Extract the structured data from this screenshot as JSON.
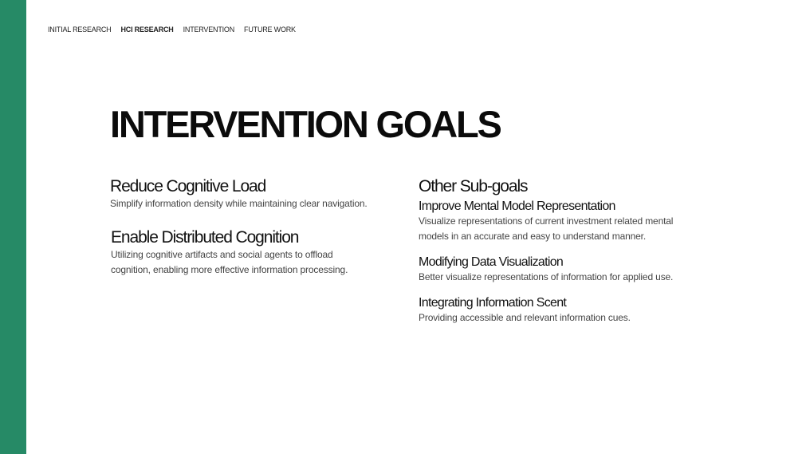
{
  "colors": {
    "accent_bar": "#268a66",
    "title": "#0b0b0b",
    "body_text": "#444444"
  },
  "nav": {
    "items": [
      {
        "label": "INITIAL RESEARCH",
        "active": false
      },
      {
        "label": "HCI RESEARCH",
        "active": true
      },
      {
        "label": "INTERVENTION",
        "active": false
      },
      {
        "label": "FUTURE WORK",
        "active": false
      }
    ]
  },
  "title": "INTERVENTION GOALS",
  "left": {
    "goal1": {
      "heading": "Reduce Cognitive Load",
      "text": "Simplify information density while maintaining clear navigation."
    },
    "goal2": {
      "heading": "Enable Distributed Cognition",
      "text_line1": "Utilizing cognitive artifacts and social agents to offload",
      "text_line2": "cognition, enabling more effective information processing."
    }
  },
  "right": {
    "heading": "Other Sub-goals",
    "items": [
      {
        "heading": "Improve Mental Model Representation",
        "text_line1": "Visualize representations of current investment related mental",
        "text_line2": "models in an accurate and easy to understand manner."
      },
      {
        "heading": "Modifying Data Visualization",
        "text_line1": "Better visualize representations of information for applied use."
      },
      {
        "heading": "Integrating Information Scent",
        "text_line1": "Providing accessible and relevant information cues."
      }
    ]
  }
}
